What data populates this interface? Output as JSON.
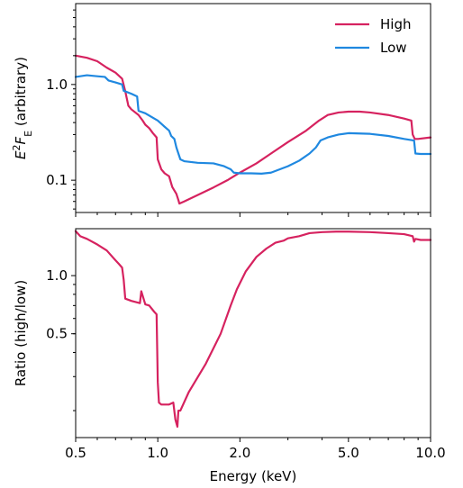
{
  "colors": {
    "high": "#d6225f",
    "low": "#1f88e0"
  },
  "chart_data": [
    {
      "type": "line",
      "xscale": "log",
      "yscale": "log",
      "xlim": [
        0.5,
        10.0
      ],
      "ylim": [
        0.046,
        7.0
      ],
      "xticks": [
        0.5,
        1.0,
        2.0,
        5.0,
        10.0
      ],
      "yticks": [
        0.1,
        1.0
      ],
      "ytick_labels": [
        "0.1",
        "1.0"
      ],
      "ylabel_parts": {
        "base1": "E",
        "sup": "2",
        "base2": "F",
        "sub": "E",
        "rest": " (arbitrary)"
      },
      "legend_position": "top-right",
      "series": [
        {
          "name": "High",
          "color": "#d6225f",
          "x": [
            0.5,
            0.55,
            0.6,
            0.65,
            0.7,
            0.74,
            0.76,
            0.78,
            0.8,
            0.85,
            0.88,
            0.9,
            0.93,
            0.96,
            0.99,
            1.0,
            1.03,
            1.06,
            1.1,
            1.13,
            1.17,
            1.19,
            1.2,
            1.25,
            1.4,
            1.6,
            1.8,
            2.0,
            2.3,
            2.6,
            3.0,
            3.5,
            3.9,
            4.2,
            4.6,
            5.0,
            5.5,
            6.0,
            7.0,
            8.0,
            8.5,
            8.6,
            8.75,
            9.0,
            10.0
          ],
          "y": [
            2.0,
            1.9,
            1.75,
            1.5,
            1.33,
            1.15,
            0.85,
            0.6,
            0.55,
            0.48,
            0.42,
            0.38,
            0.35,
            0.31,
            0.28,
            0.165,
            0.13,
            0.118,
            0.11,
            0.085,
            0.072,
            0.062,
            0.057,
            0.06,
            0.07,
            0.084,
            0.1,
            0.12,
            0.15,
            0.19,
            0.25,
            0.33,
            0.42,
            0.48,
            0.51,
            0.52,
            0.52,
            0.51,
            0.48,
            0.44,
            0.42,
            0.3,
            0.27,
            0.27,
            0.28
          ]
        },
        {
          "name": "Low",
          "color": "#1f88e0",
          "x": [
            0.5,
            0.55,
            0.6,
            0.64,
            0.66,
            0.7,
            0.74,
            0.75,
            0.8,
            0.84,
            0.85,
            0.9,
            1.0,
            1.05,
            1.1,
            1.12,
            1.15,
            1.17,
            1.19,
            1.21,
            1.25,
            1.4,
            1.6,
            1.75,
            1.85,
            1.9,
            2.0,
            2.2,
            2.4,
            2.6,
            3.0,
            3.3,
            3.6,
            3.8,
            3.95,
            4.2,
            4.6,
            5.0,
            6.0,
            7.0,
            8.0,
            8.7,
            8.8,
            9.2,
            10.0
          ],
          "y": [
            1.2,
            1.25,
            1.22,
            1.2,
            1.1,
            1.05,
            1.0,
            0.86,
            0.8,
            0.75,
            0.53,
            0.5,
            0.42,
            0.37,
            0.33,
            0.29,
            0.27,
            0.22,
            0.19,
            0.165,
            0.158,
            0.152,
            0.15,
            0.14,
            0.13,
            0.12,
            0.118,
            0.118,
            0.117,
            0.12,
            0.14,
            0.16,
            0.19,
            0.22,
            0.26,
            0.28,
            0.3,
            0.31,
            0.305,
            0.29,
            0.27,
            0.26,
            0.19,
            0.188,
            0.188
          ]
        }
      ]
    },
    {
      "type": "line",
      "xscale": "log",
      "yscale": "log",
      "xlim": [
        0.5,
        10.0
      ],
      "ylim": [
        0.145,
        1.75
      ],
      "xticks": [
        0.5,
        1.0,
        2.0,
        5.0,
        10.0
      ],
      "xtick_labels": [
        "0.5",
        "1.0",
        "2.0",
        "5.0",
        "10.0"
      ],
      "yticks": [
        0.5,
        1.0
      ],
      "ytick_labels": [
        "0.5",
        "1.0"
      ],
      "xlabel": "Energy (keV)",
      "ylabel": "Ratio (high/low)",
      "series": [
        {
          "color": "#d6225f",
          "x": [
            0.5,
            0.52,
            0.55,
            0.6,
            0.65,
            0.7,
            0.72,
            0.74,
            0.75,
            0.76,
            0.8,
            0.86,
            0.87,
            0.9,
            0.93,
            0.97,
            0.99,
            1.0,
            1.01,
            1.03,
            1.1,
            1.14,
            1.16,
            1.18,
            1.19,
            1.21,
            1.3,
            1.5,
            1.7,
            1.85,
            1.95,
            2.1,
            2.3,
            2.5,
            2.7,
            2.9,
            3.0,
            3.3,
            3.6,
            4.0,
            4.5,
            5.0,
            6.0,
            7.0,
            8.0,
            8.6,
            8.7,
            8.8,
            9.2,
            10.0
          ],
          "y": [
            1.7,
            1.6,
            1.55,
            1.45,
            1.35,
            1.2,
            1.15,
            1.1,
            0.95,
            0.76,
            0.74,
            0.72,
            0.83,
            0.71,
            0.7,
            0.65,
            0.63,
            0.28,
            0.22,
            0.215,
            0.215,
            0.22,
            0.18,
            0.165,
            0.2,
            0.2,
            0.25,
            0.35,
            0.5,
            0.7,
            0.85,
            1.05,
            1.25,
            1.38,
            1.48,
            1.52,
            1.56,
            1.6,
            1.66,
            1.68,
            1.69,
            1.69,
            1.68,
            1.66,
            1.64,
            1.6,
            1.5,
            1.55,
            1.53,
            1.53
          ]
        }
      ]
    }
  ]
}
